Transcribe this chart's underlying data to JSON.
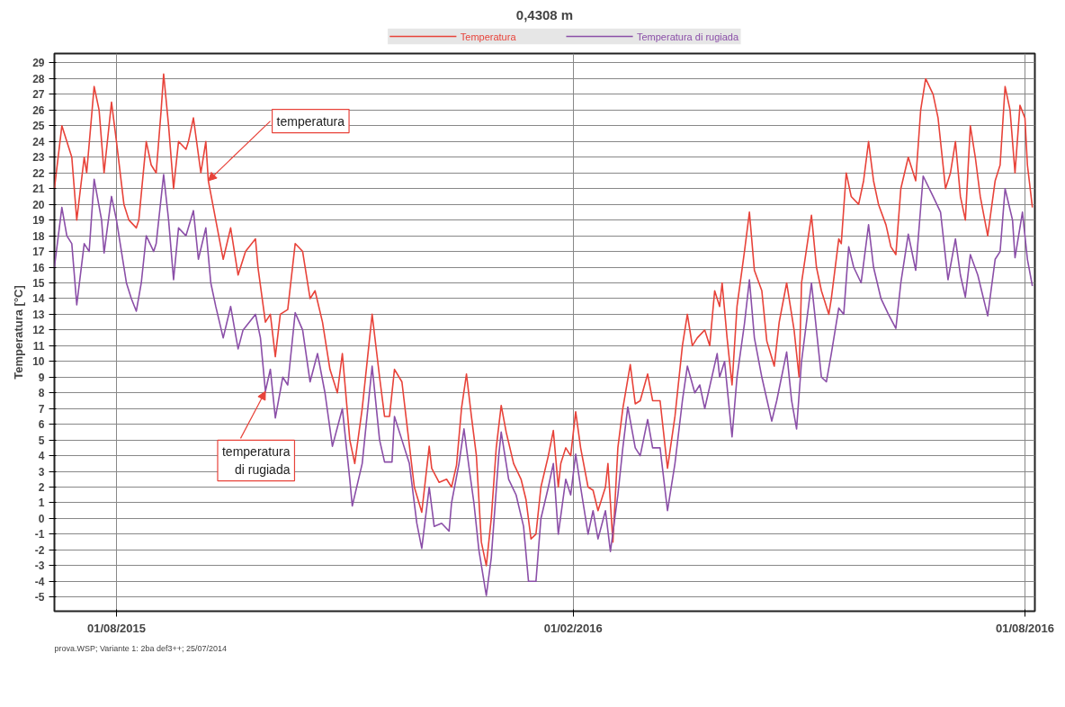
{
  "chart_data": {
    "type": "line",
    "title": "0,4308 m",
    "ylabel": "Temperatura [°C]",
    "xlim": [
      "2015-07-07",
      "2016-08-05"
    ],
    "ylim": [
      -5.9,
      29.6
    ],
    "xticks": [
      {
        "value": "2015-08-01",
        "label": "01/08/2015"
      },
      {
        "value": "2016-02-01",
        "label": "01/02/2016"
      },
      {
        "value": "2016-08-01",
        "label": "01/08/2016"
      }
    ],
    "yticks": [
      -5,
      -4,
      -3,
      -2,
      -1,
      0,
      1,
      2,
      3,
      4,
      5,
      6,
      7,
      8,
      9,
      10,
      11,
      12,
      13,
      14,
      15,
      16,
      17,
      18,
      19,
      20,
      21,
      22,
      23,
      24,
      25,
      26,
      27,
      28,
      29
    ],
    "grid": true,
    "legend": "top",
    "line_style": "solid",
    "marker": "none",
    "annotations": [
      {
        "text": "temperatura",
        "x": "2015-09-07",
        "y": 21.5
      },
      {
        "text": "temperatura\ndi rugiada",
        "x": "2015-09-30",
        "y": 8.1
      },
      "prova.WSP; Variante 1: 2ba def3++; 25/07/2014"
    ],
    "series": [
      {
        "name": "Temperatura",
        "color": "#e8433a",
        "x": [
          "2015-07-07",
          "2015-07-10",
          "2015-07-12",
          "2015-07-14",
          "2015-07-16",
          "2015-07-19",
          "2015-07-20",
          "2015-07-23",
          "2015-07-25",
          "2015-07-27",
          "2015-07-30",
          "2015-08-01",
          "2015-08-04",
          "2015-08-06",
          "2015-08-09",
          "2015-08-10",
          "2015-08-13",
          "2015-08-15",
          "2015-08-17",
          "2015-08-19",
          "2015-08-20",
          "2015-08-22",
          "2015-08-24",
          "2015-08-26",
          "2015-08-29",
          "2015-08-30",
          "2015-09-01",
          "2015-09-04",
          "2015-09-06",
          "2015-09-07",
          "2015-09-10",
          "2015-09-13",
          "2015-09-16",
          "2015-09-19",
          "2015-09-22",
          "2015-09-26",
          "2015-09-27",
          "2015-09-30",
          "2015-10-02",
          "2015-10-04",
          "2015-10-06",
          "2015-10-09",
          "2015-10-12",
          "2015-10-15",
          "2015-10-18",
          "2015-10-20",
          "2015-10-23",
          "2015-10-26",
          "2015-10-29",
          "2015-10-31",
          "2015-11-03",
          "2015-11-05",
          "2015-11-08",
          "2015-11-12",
          "2015-11-15",
          "2015-11-17",
          "2015-11-19",
          "2015-11-21",
          "2015-11-24",
          "2015-11-26",
          "2015-11-29",
          "2015-12-02",
          "2015-12-05",
          "2015-12-06",
          "2015-12-09",
          "2015-12-12",
          "2015-12-14",
          "2015-12-16",
          "2015-12-18",
          "2015-12-20",
          "2015-12-22",
          "2015-12-24",
          "2015-12-26",
          "2015-12-28",
          "2015-12-30",
          "2016-01-01",
          "2016-01-03",
          "2016-01-05",
          "2016-01-08",
          "2016-01-11",
          "2016-01-13",
          "2016-01-15",
          "2016-01-17",
          "2016-01-19",
          "2016-01-22",
          "2016-01-24",
          "2016-01-26",
          "2016-01-27",
          "2016-01-29",
          "2016-01-31",
          "2016-02-02",
          "2016-02-04",
          "2016-02-07",
          "2016-02-09",
          "2016-02-11",
          "2016-02-14",
          "2016-02-15",
          "2016-02-17",
          "2016-02-19",
          "2016-02-21",
          "2016-02-24",
          "2016-02-26",
          "2016-02-28",
          "2016-03-02",
          "2016-03-04",
          "2016-03-07",
          "2016-03-10",
          "2016-03-13",
          "2016-03-16",
          "2016-03-18",
          "2016-03-20",
          "2016-03-22",
          "2016-03-25",
          "2016-03-27",
          "2016-03-29",
          "2016-03-31",
          "2016-04-01",
          "2016-04-03",
          "2016-04-05",
          "2016-04-07",
          "2016-04-10",
          "2016-04-12",
          "2016-04-14",
          "2016-04-17",
          "2016-04-19",
          "2016-04-22",
          "2016-04-24",
          "2016-04-27",
          "2016-04-30",
          "2016-05-02",
          "2016-05-03",
          "2016-05-07",
          "2016-05-09",
          "2016-05-11",
          "2016-05-14",
          "2016-05-15",
          "2016-05-18",
          "2016-05-19",
          "2016-05-21",
          "2016-05-23",
          "2016-05-26",
          "2016-05-28",
          "2016-05-30",
          "2016-06-01",
          "2016-06-03",
          "2016-06-06",
          "2016-06-08",
          "2016-06-10",
          "2016-06-12",
          "2016-06-15",
          "2016-06-18",
          "2016-06-20",
          "2016-06-22",
          "2016-06-25",
          "2016-06-27",
          "2016-06-30",
          "2016-07-02",
          "2016-07-04",
          "2016-07-06",
          "2016-07-08",
          "2016-07-10",
          "2016-07-12",
          "2016-07-14",
          "2016-07-17",
          "2016-07-20",
          "2016-07-22",
          "2016-07-24",
          "2016-07-26",
          "2016-07-28",
          "2016-07-30",
          "2016-08-01",
          "2016-08-02",
          "2016-08-04"
        ],
        "values": [
          21,
          25,
          24,
          23,
          19,
          23,
          22,
          27.5,
          26,
          22,
          26.5,
          24,
          20,
          19,
          18.5,
          19,
          24,
          22.5,
          22,
          26,
          28.3,
          25,
          21,
          24,
          23.5,
          24,
          25.5,
          22,
          24,
          21.5,
          19,
          16.5,
          18.5,
          15.5,
          17,
          17.8,
          16,
          12.5,
          13,
          10.3,
          13,
          13.3,
          17.5,
          17,
          14,
          14.5,
          12.5,
          9.5,
          8,
          10.5,
          5,
          3.5,
          7,
          13,
          9,
          6.5,
          6.5,
          9.5,
          8.7,
          6,
          2,
          0.4,
          4.6,
          3.2,
          2.3,
          2.5,
          2,
          3.4,
          7,
          9.2,
          6.5,
          4,
          -1.5,
          -3,
          0,
          4.5,
          7.2,
          5.5,
          3.5,
          2.5,
          1.2,
          -1.3,
          -1,
          2,
          4,
          5.6,
          2,
          3.5,
          4.5,
          4,
          6.8,
          4.5,
          2,
          1.8,
          0.5,
          2,
          3.5,
          -1.5,
          4.5,
          7,
          9.8,
          7.3,
          7.5,
          9.2,
          7.5,
          7.5,
          3.2,
          6.5,
          11,
          13,
          11,
          11.5,
          12,
          11,
          14.5,
          13.5,
          15,
          11.5,
          8.5,
          13.5,
          17,
          19.5,
          15.8,
          14.5,
          11.3,
          9.7,
          12.5,
          15,
          12,
          9,
          15,
          19.3,
          16,
          14.5,
          13,
          14,
          17.8,
          17.5,
          22,
          20.5,
          20,
          21.5,
          24,
          21.5,
          20,
          18.7,
          17.3,
          16.8,
          21,
          23,
          21.5,
          26,
          28,
          27,
          25.5,
          21,
          22,
          24,
          20.5,
          19,
          25,
          23,
          20.5,
          18,
          21.5,
          22.5,
          27.5,
          26,
          22,
          26.3,
          25.5,
          22.5,
          19.8
        ]
      },
      {
        "name": "Temperatura di rugiada",
        "color": "#8b4fa8",
        "x": [
          "2015-07-07",
          "2015-07-10",
          "2015-07-12",
          "2015-07-14",
          "2015-07-16",
          "2015-07-19",
          "2015-07-21",
          "2015-07-23",
          "2015-07-26",
          "2015-07-27",
          "2015-07-30",
          "2015-08-01",
          "2015-08-05",
          "2015-08-07",
          "2015-08-09",
          "2015-08-11",
          "2015-08-13",
          "2015-08-16",
          "2015-08-17",
          "2015-08-20",
          "2015-08-22",
          "2015-08-24",
          "2015-08-26",
          "2015-08-29",
          "2015-09-01",
          "2015-09-03",
          "2015-09-06",
          "2015-09-08",
          "2015-09-10",
          "2015-09-13",
          "2015-09-16",
          "2015-09-19",
          "2015-09-21",
          "2015-09-26",
          "2015-09-28",
          "2015-09-30",
          "2015-10-02",
          "2015-10-04",
          "2015-10-07",
          "2015-10-09",
          "2015-10-12",
          "2015-10-15",
          "2015-10-18",
          "2015-10-21",
          "2015-10-24",
          "2015-10-27",
          "2015-10-31",
          "2015-11-03",
          "2015-11-04",
          "2015-11-08",
          "2015-11-12",
          "2015-11-15",
          "2015-11-17",
          "2015-11-20",
          "2015-11-21",
          "2015-11-24",
          "2015-11-27",
          "2015-11-30",
          "2015-12-02",
          "2015-12-05",
          "2015-12-07",
          "2015-12-10",
          "2015-12-13",
          "2015-12-14",
          "2015-12-17",
          "2015-12-19",
          "2015-12-21",
          "2015-12-23",
          "2015-12-25",
          "2015-12-28",
          "2015-12-30",
          "2016-01-02",
          "2016-01-03",
          "2016-01-06",
          "2016-01-09",
          "2016-01-12",
          "2016-01-14",
          "2016-01-17",
          "2016-01-19",
          "2016-01-22",
          "2016-01-24",
          "2016-01-26",
          "2016-01-29",
          "2016-01-31",
          "2016-02-02",
          "2016-02-04",
          "2016-02-07",
          "2016-02-09",
          "2016-02-11",
          "2016-02-14",
          "2016-02-16",
          "2016-02-19",
          "2016-02-21",
          "2016-02-23",
          "2016-02-26",
          "2016-02-28",
          "2016-03-02",
          "2016-03-04",
          "2016-03-07",
          "2016-03-10",
          "2016-03-13",
          "2016-03-16",
          "2016-03-18",
          "2016-03-21",
          "2016-03-23",
          "2016-03-25",
          "2016-03-30",
          "2016-03-31",
          "2016-04-02",
          "2016-04-05",
          "2016-04-07",
          "2016-04-10",
          "2016-04-12",
          "2016-04-14",
          "2016-04-17",
          "2016-04-21",
          "2016-04-23",
          "2016-04-27",
          "2016-04-29",
          "2016-05-01",
          "2016-05-03",
          "2016-05-07",
          "2016-05-09",
          "2016-05-11",
          "2016-05-13",
          "2016-05-15",
          "2016-05-18",
          "2016-05-20",
          "2016-05-22",
          "2016-05-24",
          "2016-05-27",
          "2016-05-30",
          "2016-06-01",
          "2016-06-04",
          "2016-06-07",
          "2016-06-10",
          "2016-06-12",
          "2016-06-15",
          "2016-06-18",
          "2016-06-21",
          "2016-06-25",
          "2016-06-28",
          "2016-07-01",
          "2016-07-04",
          "2016-07-06",
          "2016-07-08",
          "2016-07-10",
          "2016-07-13",
          "2016-07-17",
          "2016-07-20",
          "2016-07-22",
          "2016-07-24",
          "2016-07-27",
          "2016-07-28",
          "2016-07-31",
          "2016-08-02",
          "2016-08-04"
        ],
        "values": [
          16,
          19.8,
          18,
          17.5,
          13.6,
          17.5,
          17,
          21.6,
          19,
          16.9,
          20.5,
          19,
          15,
          14,
          13.2,
          15,
          18,
          17,
          17.5,
          21.9,
          19,
          15.2,
          18.5,
          18,
          19.6,
          16.5,
          18.5,
          15,
          13.5,
          11.5,
          13.5,
          10.8,
          12,
          13,
          11.5,
          8.1,
          9.5,
          6.4,
          9,
          8.5,
          13.1,
          12,
          8.7,
          10.5,
          8,
          4.6,
          7,
          2.5,
          0.8,
          3.5,
          9.7,
          5,
          3.6,
          3.6,
          6.5,
          5,
          3.5,
          -0.3,
          -1.9,
          2,
          -0.5,
          -0.3,
          -0.8,
          1,
          3.5,
          5.7,
          3.3,
          1,
          -2,
          -4.9,
          -2.5,
          4,
          5.5,
          2.5,
          1.5,
          -0.5,
          -4,
          -4,
          0,
          2,
          3.5,
          -1,
          2.5,
          1.5,
          4.1,
          2,
          -1,
          0.5,
          -1.3,
          0.5,
          -2.1,
          1.5,
          4.5,
          7.1,
          4.5,
          4,
          6.3,
          4.5,
          4.5,
          0.5,
          3.5,
          7.5,
          9.7,
          8,
          8.5,
          7,
          10.5,
          9,
          10,
          5.2,
          9,
          12.4,
          15.2,
          11.5,
          9,
          6.2,
          7.5,
          10.6,
          7.5,
          5.7,
          10,
          15,
          12,
          9,
          8.7,
          10.5,
          13.4,
          13,
          17.3,
          16,
          15,
          18.7,
          16,
          14,
          13,
          12.1,
          15,
          18.1,
          15.8,
          21.8,
          20.5,
          19.5,
          15.2,
          17.8,
          15.5,
          14.1,
          16.8,
          15.5,
          12.9,
          16.5,
          17,
          21,
          19,
          16.6,
          19.5,
          16.5,
          14.8
        ]
      }
    ]
  }
}
